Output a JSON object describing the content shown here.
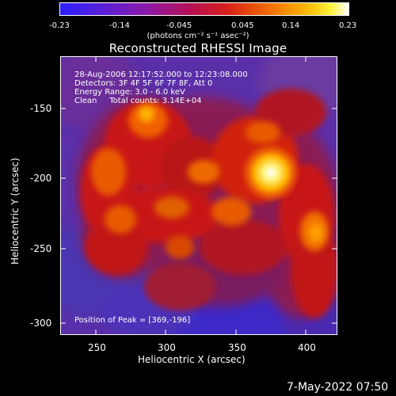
{
  "colorbar": {
    "tick_labels": [
      "-0.23",
      "-0.14",
      "-0.045",
      "0.045",
      "0.14",
      "0.23"
    ],
    "units": "(photons cm⁻² s⁻¹ asec⁻²)"
  },
  "title": "Reconstructed RHESSI Image",
  "overlay": {
    "line1": "28-Aug-2006 12:17:52.000 to 12:23:08.000",
    "line2": "Detectors: 3F 4F 5F 6F 7F 8F, Att 0",
    "line3": "Energy Range: 3.0 - 6.0 keV",
    "line4": "Clean     Total counts: 3.14E+04",
    "peak": "Position of Peak = [369,-196]"
  },
  "axes": {
    "xlabel": "Heliocentric X (arcsec)",
    "ylabel": "Heliocentric Y (arcsec)",
    "xticks": [
      "250",
      "300",
      "350",
      "400"
    ],
    "yticks": [
      "-150",
      "-200",
      "-250",
      "-300"
    ]
  },
  "footer": {
    "date": "7-May-2022 07:50"
  }
}
